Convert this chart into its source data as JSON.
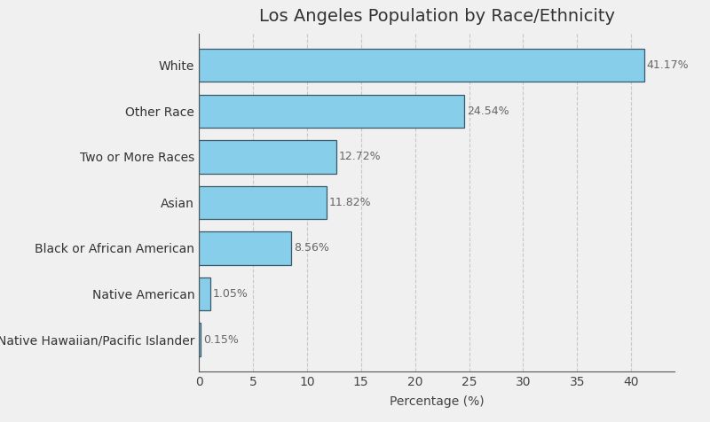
{
  "title": "Los Angeles Population by Race/Ethnicity",
  "categories": [
    "Native Hawaiian/Pacific Islander",
    "Native American",
    "Black or African American",
    "Asian",
    "Two or More Races",
    "Other Race",
    "White"
  ],
  "values": [
    0.15,
    1.05,
    8.56,
    11.82,
    12.72,
    24.54,
    41.17
  ],
  "bar_color": "#87CEEB",
  "bar_edgecolor": "#3A5A6A",
  "background_color": "#F0F0F0",
  "grid_color": "#C8C8C8",
  "text_color": "#666666",
  "xlabel": "Percentage (%)",
  "xlim": [
    0,
    44
  ],
  "xticks": [
    0,
    5,
    10,
    15,
    20,
    25,
    30,
    35,
    40
  ],
  "title_fontsize": 14,
  "label_fontsize": 10,
  "tick_fontsize": 10,
  "annotation_fontsize": 9,
  "bar_height": 0.72
}
